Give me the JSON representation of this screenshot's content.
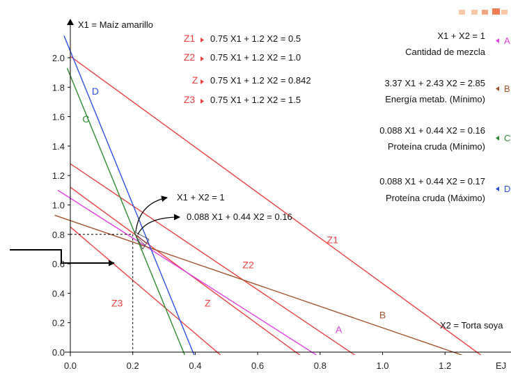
{
  "chart_data": {
    "type": "line",
    "xlabel": "EJ",
    "ylabel": "X1 = Maíz amarillo",
    "x2_label": "X2 = Torta soya",
    "xlim": [
      0.0,
      1.4
    ],
    "ylim": [
      0.0,
      2.0
    ],
    "x_ticks": [
      "0.0",
      "0.2",
      "0.4",
      "0.6",
      "0.8",
      "1.0",
      "1.2",
      "EJ"
    ],
    "y_ticks": [
      "0.0",
      "0.2",
      "0.4",
      "0.6",
      "0.8",
      "1.0",
      "1.2",
      "1.4",
      "1.6",
      "1.8",
      "2.0"
    ],
    "x_tick_values": [
      0.0,
      0.2,
      0.4,
      0.6,
      0.8,
      1.0,
      1.2
    ],
    "y_tick_values": [
      0.0,
      0.2,
      0.4,
      0.6,
      0.8,
      1.0,
      1.2,
      1.4,
      1.6,
      1.8,
      2.0
    ],
    "objective_legend": [
      {
        "key": "Z1",
        "text": "0.75 X1 + 1.2 X2 = 0.5"
      },
      {
        "key": "Z2",
        "text": "0.75 X1 + 1.2 X2 = 1.0"
      },
      {
        "key": "Z",
        "text": "0.75 X1 + 1.2 X2 = 0.842"
      },
      {
        "key": "Z3",
        "text": "0.75 X1 + 1.2 X2 = 1.5"
      }
    ],
    "constraint_legend": [
      {
        "key": "A",
        "line1": "X1 + X2 = 1",
        "line2": "Cantidad de mezcla",
        "color": "#e040e0"
      },
      {
        "key": "B",
        "line1": "3.37 X1 + 2.43 X2 = 2.85",
        "line2": "Energía metab. (Mínimo)",
        "color": "#a0522d"
      },
      {
        "key": "C",
        "line1": "0.088 X1 + 0.44 X2 = 0.16",
        "line2": "Proteína cruda (Mínimo)",
        "color": "#2e8b2e"
      },
      {
        "key": "D",
        "line1": "0.088 X1 + 0.44 X2 = 0.17",
        "line2": "Proteína cruda (Máximo)",
        "color": "#3050e0"
      }
    ],
    "annotations": [
      {
        "text": "X1 + X2 = 1"
      },
      {
        "text": "0.088 X1 + 0.44 X2 = 0.16"
      }
    ],
    "series": [
      {
        "name": "Z1",
        "color": "#e84040",
        "x": [
          0.0,
          1.36
        ],
        "y": [
          2.01,
          -0.09
        ],
        "label_at": [
          0.84,
          0.74
        ]
      },
      {
        "name": "Z2",
        "color": "#e84040",
        "x": [
          0.0,
          0.96
        ],
        "y": [
          1.28,
          -0.09
        ],
        "label_at": [
          0.57,
          0.57
        ]
      },
      {
        "name": "Z",
        "color": "#e84040",
        "x": [
          0.0,
          0.78
        ],
        "y": [
          1.12,
          -0.09
        ],
        "label_at": [
          0.44,
          0.31
        ]
      },
      {
        "name": "Z3",
        "color": "#e84040",
        "x": [
          0.0,
          0.52
        ],
        "y": [
          0.85,
          -0.09
        ],
        "label_at": [
          0.15,
          0.31
        ]
      },
      {
        "name": "A",
        "color": "#e040e0",
        "x": [
          -0.04,
          0.84
        ],
        "y": [
          1.1,
          -0.09
        ],
        "label_at": [
          0.86,
          0.13
        ]
      },
      {
        "name": "B",
        "color": "#a0522d",
        "x": [
          -0.05,
          1.35
        ],
        "y": [
          0.93,
          -0.09
        ],
        "label_at": [
          1.0,
          0.23
        ]
      },
      {
        "name": "C",
        "color": "#2e8b2e",
        "x": [
          -0.01,
          0.38
        ],
        "y": [
          1.93,
          -0.09
        ],
        "label_at": [
          0.05,
          1.56
        ]
      },
      {
        "name": "D",
        "color": "#3050e0",
        "x": [
          -0.02,
          0.41
        ],
        "y": [
          2.15,
          -0.09
        ],
        "label_at": [
          0.08,
          1.75
        ]
      }
    ],
    "optimal_point": {
      "x": 0.2,
      "y": 0.8
    },
    "legend": "top-right"
  }
}
